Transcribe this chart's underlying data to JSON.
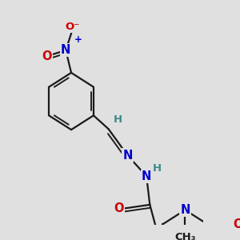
{
  "bg_color": "#e0e0e0",
  "bond_color": "#1a1a1a",
  "bond_width": 1.6,
  "atom_colors": {
    "N": "#0000cc",
    "O": "#cc0000",
    "C": "#1a1a1a",
    "H": "#3a8a8a"
  },
  "font_size_atom": 10.5,
  "figsize": [
    3.0,
    3.0
  ],
  "dpi": 100
}
